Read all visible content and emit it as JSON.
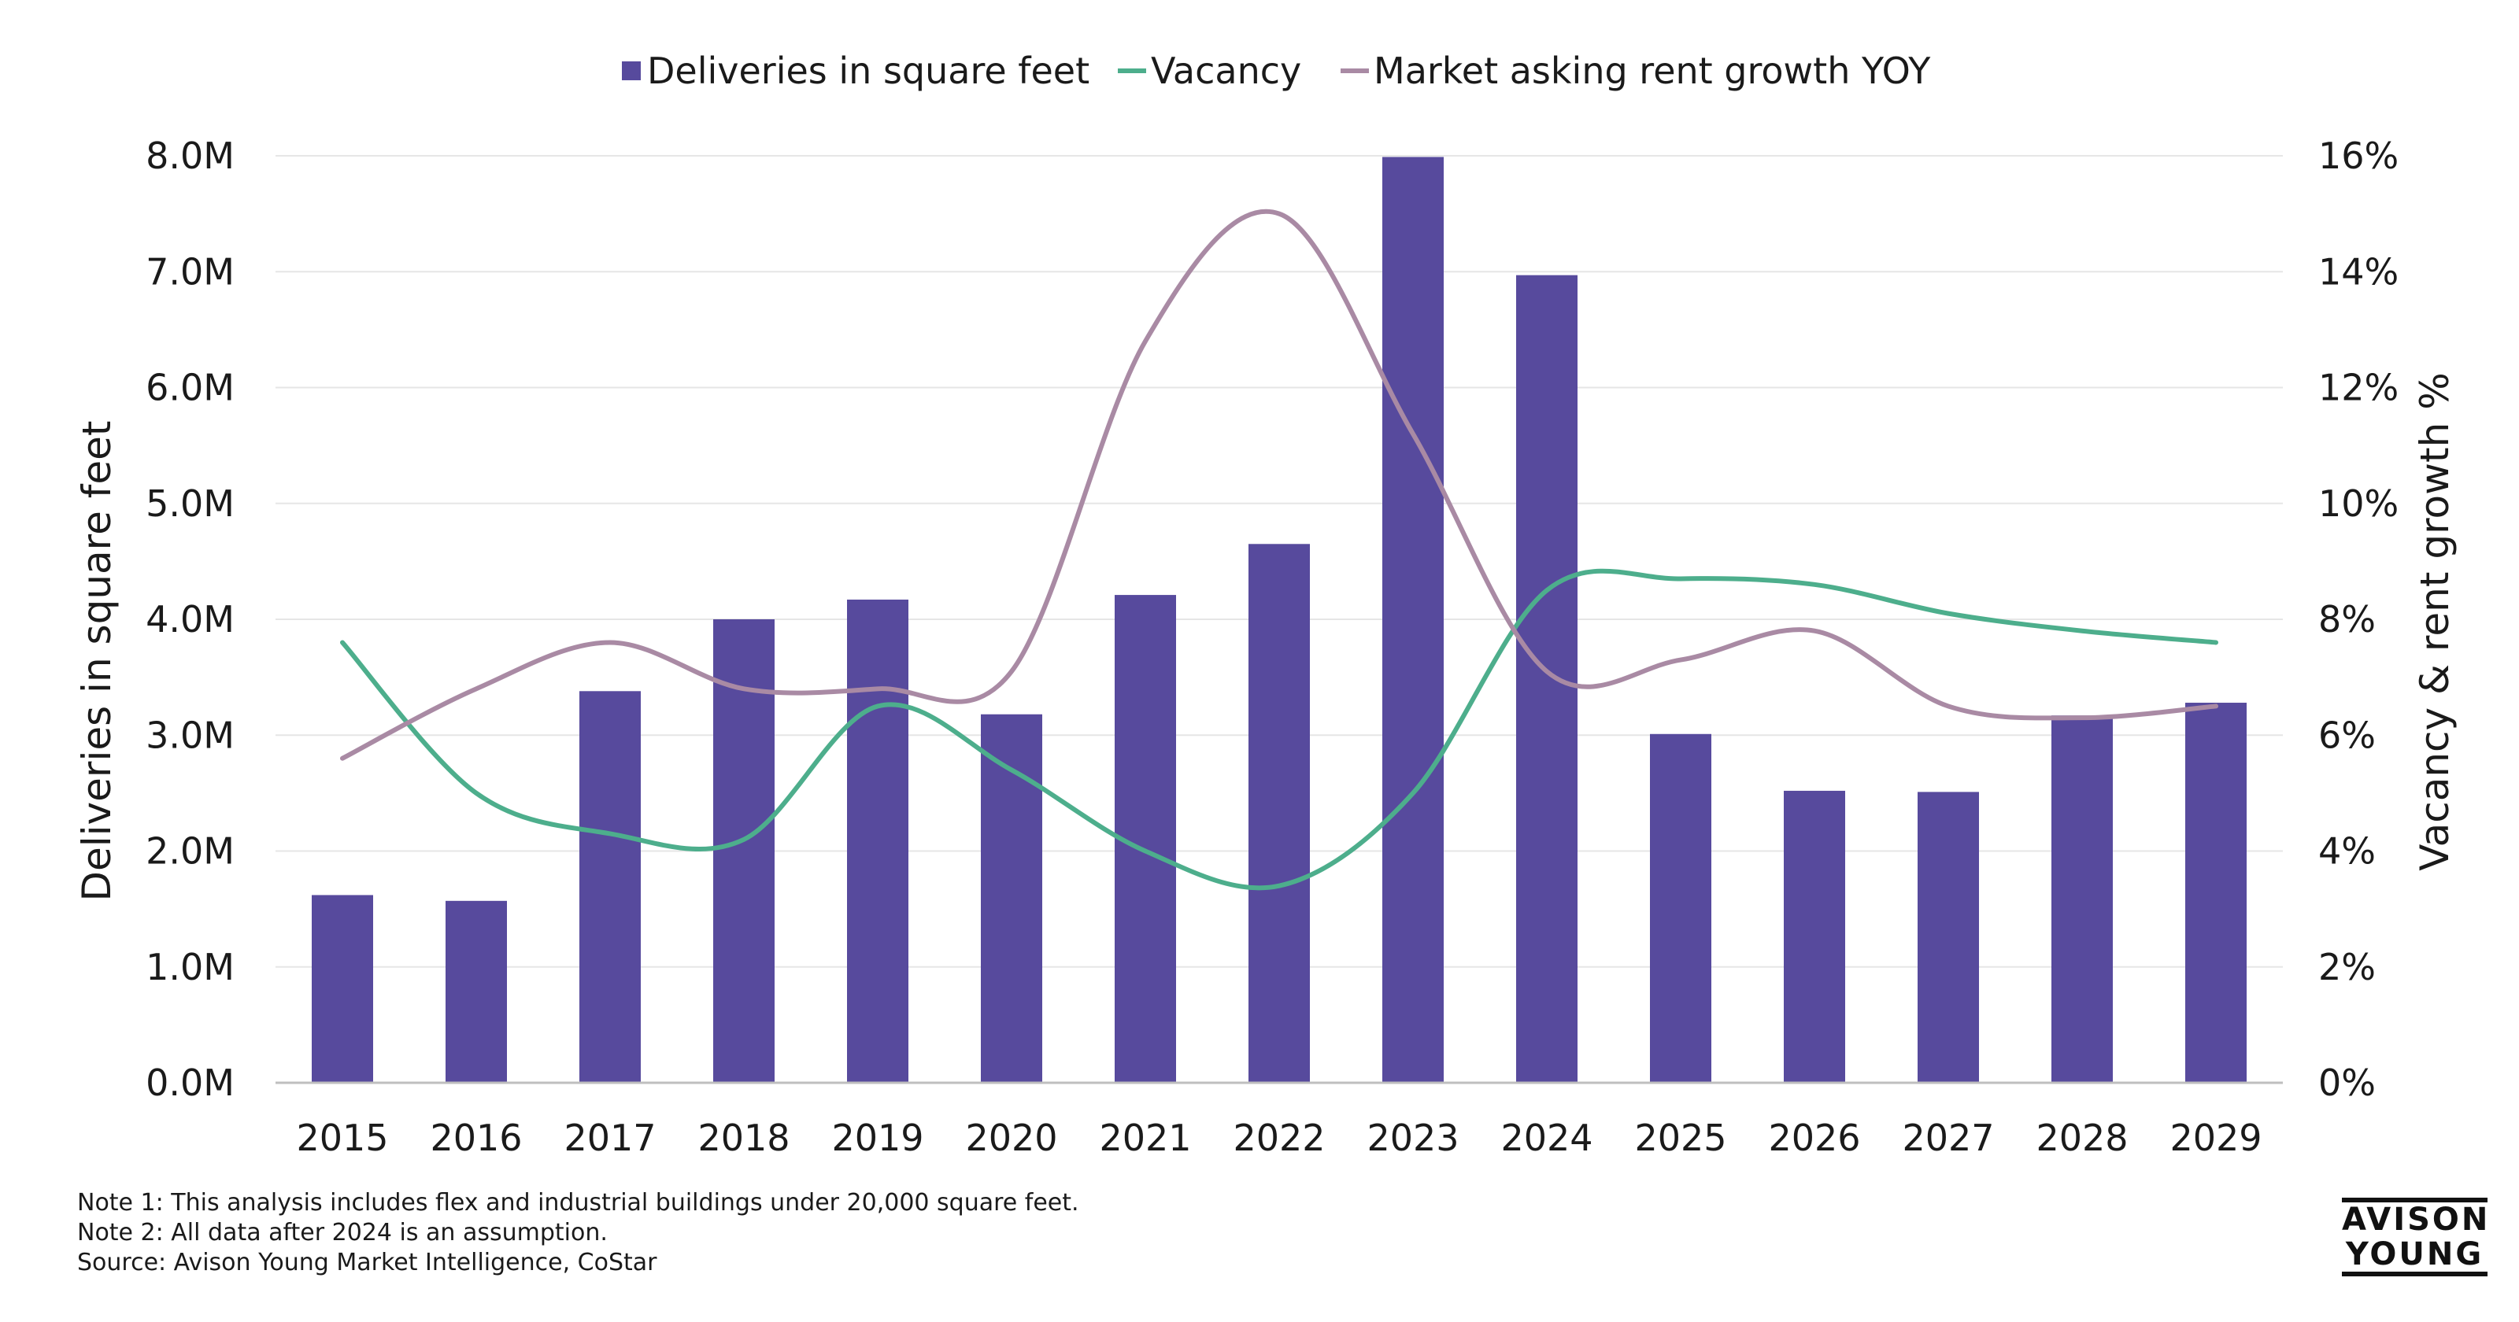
{
  "chart_data": {
    "type": "bar+line",
    "categories": [
      "2015",
      "2016",
      "2017",
      "2018",
      "2019",
      "2020",
      "2021",
      "2022",
      "2023",
      "2024",
      "2025",
      "2026",
      "2027",
      "2028",
      "2029"
    ],
    "series": [
      {
        "name": "Deliveries in square feet",
        "type": "bar",
        "axis": "left",
        "color": "#574a9d",
        "values": [
          1620000,
          1570000,
          3380000,
          4000000,
          4170000,
          3180000,
          4210000,
          4650000,
          7990000,
          6970000,
          3010000,
          2520000,
          2510000,
          3170000,
          3280000
        ]
      },
      {
        "name": "Vacancy",
        "type": "line",
        "axis": "right",
        "color": "#4dae8c",
        "values": [
          7.6,
          5.0,
          4.3,
          4.2,
          6.5,
          5.4,
          4.0,
          3.4,
          5.0,
          8.5,
          8.7,
          8.6,
          8.1,
          7.8,
          7.6
        ]
      },
      {
        "name": "Market asking rent growth YOY",
        "type": "line",
        "axis": "right",
        "color": "#a98aa4",
        "values": [
          5.6,
          6.8,
          7.6,
          6.8,
          6.8,
          7.1,
          12.8,
          15.0,
          11.2,
          7.1,
          7.3,
          7.8,
          6.5,
          6.3,
          6.5
        ]
      }
    ],
    "ylabel": "Deliveries in square feet",
    "y2label": "Vacancy & rent growth %",
    "ylim": [
      0,
      8000000
    ],
    "y2lim": [
      0,
      16
    ],
    "yticks": [
      "0.0M",
      "1.0M",
      "2.0M",
      "3.0M",
      "4.0M",
      "5.0M",
      "6.0M",
      "7.0M",
      "8.0M"
    ],
    "y2ticks": [
      "0%",
      "2%",
      "4%",
      "6%",
      "8%",
      "10%",
      "12%",
      "14%",
      "16%"
    ],
    "legend_position": "top-center",
    "grid": true
  },
  "notes": [
    "Note 1: This analysis includes flex and industrial buildings under 20,000 square feet.",
    "Note 2: All data after 2024 is an assumption.",
    "Source: Avison Young Market Intelligence, CoStar"
  ],
  "logo": {
    "line1": "AVISON",
    "line2": "YOUNG"
  },
  "colors": {
    "grid": "#e6e6e6",
    "axis": "#bfbfbf",
    "text": "#1a1a1a"
  }
}
